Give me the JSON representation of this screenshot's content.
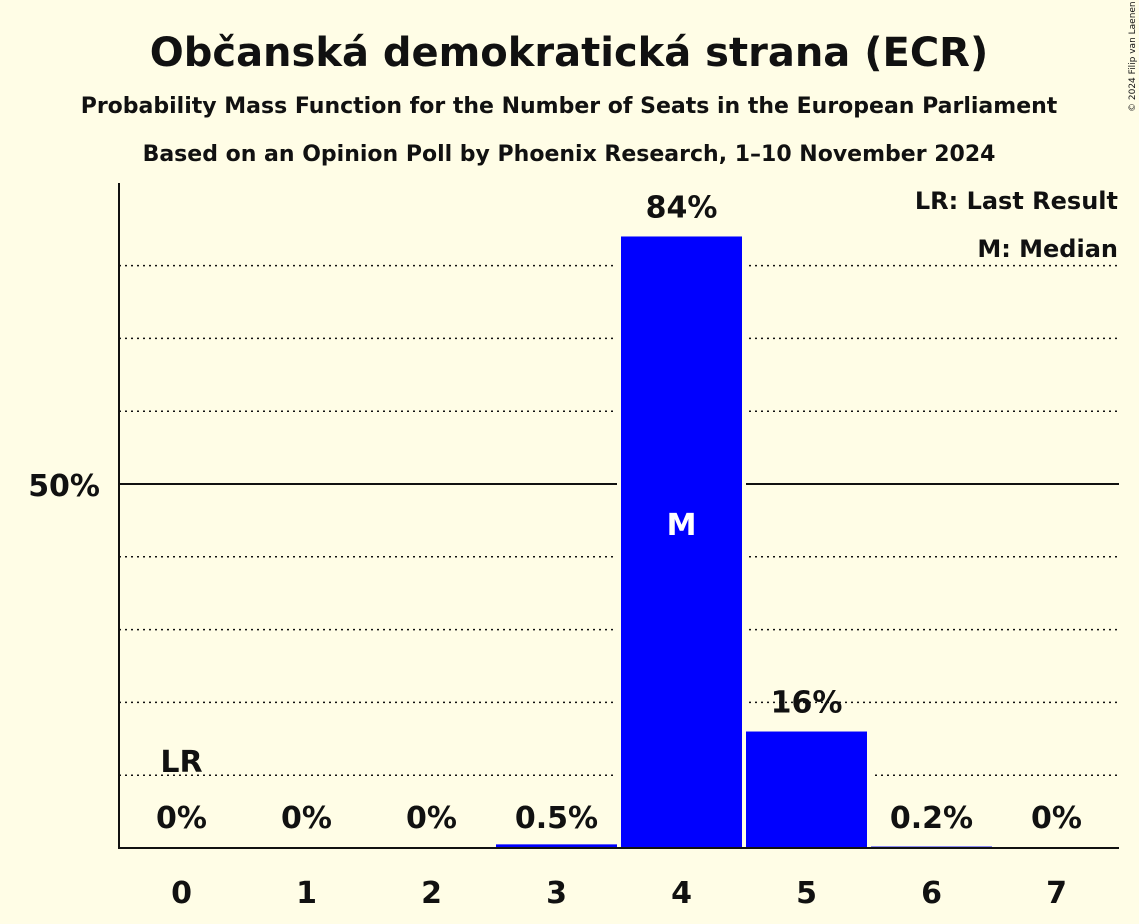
{
  "chart_data": {
    "type": "bar",
    "title": "Občanská demokratická strana (ECR)",
    "subtitle": "Probability Mass Function for the Number of Seats in the European Parliament",
    "subtitle2": "Based on an Opinion Poll by Phoenix Research, 1–10 November 2024",
    "categories": [
      "0",
      "1",
      "2",
      "3",
      "4",
      "5",
      "6",
      "7"
    ],
    "values": [
      0,
      0,
      0,
      0.5,
      84,
      16,
      0.2,
      0
    ],
    "value_labels": [
      "0%",
      "0%",
      "0%",
      "0.5%",
      "84%",
      "16%",
      "0.2%",
      "0%"
    ],
    "ylim": [
      0,
      91
    ],
    "ytick_label": "50%",
    "ytick_value": 50,
    "gridlines": [
      10,
      20,
      30,
      40,
      50,
      60,
      70,
      80
    ],
    "last_result_index": 0,
    "last_result_label": "LR",
    "median_index": 4,
    "median_label": "M",
    "legend": {
      "last_result": "LR: Last Result",
      "median": "M: Median"
    },
    "bar_color": "#0000ff",
    "copyright": "© 2024 Filip van Laenen"
  }
}
